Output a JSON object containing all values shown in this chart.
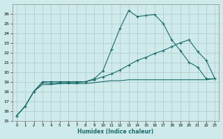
{
  "xlabel": "Humidex (Indice chaleur)",
  "bg_color": "#ceeaea",
  "grid_color": "#b0c8c8",
  "line_color": "#1a6b6b",
  "xlim": [
    -0.5,
    23.5
  ],
  "ylim": [
    15,
    27
  ],
  "xtick_labels": [
    "0",
    "1",
    "2",
    "3",
    "4",
    "5",
    "6",
    "7",
    "8",
    "9",
    "10",
    "11",
    "12",
    "13",
    "14",
    "15",
    "16",
    "17",
    "18",
    "19",
    "20",
    "21",
    "22",
    "23"
  ],
  "xtick_vals": [
    0,
    1,
    2,
    3,
    4,
    5,
    6,
    7,
    8,
    9,
    10,
    11,
    12,
    13,
    14,
    15,
    16,
    17,
    18,
    19,
    20,
    21,
    22,
    23
  ],
  "ytick_vals": [
    15,
    16,
    17,
    18,
    19,
    20,
    21,
    22,
    23,
    24,
    25,
    26
  ],
  "line1_x": [
    0,
    1,
    2,
    3,
    4,
    5,
    6,
    7,
    8,
    9,
    10,
    11,
    12,
    13,
    14,
    15,
    16,
    17,
    18,
    19,
    20,
    21,
    22,
    23
  ],
  "line1_y": [
    15.5,
    16.5,
    18.0,
    19.0,
    19.0,
    19.0,
    19.0,
    19.0,
    19.0,
    19.3,
    20.1,
    22.3,
    24.5,
    26.3,
    25.7,
    25.8,
    25.9,
    25.0,
    23.3,
    22.2,
    21.0,
    20.5,
    19.3,
    19.3
  ],
  "line2_x": [
    0,
    1,
    2,
    3,
    4,
    5,
    6,
    7,
    8,
    9,
    10,
    11,
    12,
    13,
    14,
    15,
    16,
    17,
    18,
    19,
    20,
    21,
    22,
    23
  ],
  "line2_y": [
    15.5,
    16.5,
    18.0,
    18.9,
    18.8,
    18.9,
    18.9,
    18.9,
    19.0,
    19.2,
    19.5,
    19.8,
    20.2,
    20.7,
    21.2,
    21.5,
    21.9,
    22.2,
    22.6,
    23.0,
    23.3,
    22.1,
    21.2,
    19.3
  ],
  "line3_x": [
    0,
    1,
    2,
    3,
    4,
    5,
    6,
    7,
    8,
    9,
    10,
    11,
    12,
    13,
    14,
    15,
    16,
    17,
    18,
    19,
    20,
    21,
    22,
    23
  ],
  "line3_y": [
    15.5,
    16.5,
    18.0,
    18.7,
    18.7,
    18.8,
    18.8,
    18.8,
    18.8,
    18.9,
    19.0,
    19.1,
    19.1,
    19.2,
    19.2,
    19.2,
    19.2,
    19.2,
    19.2,
    19.2,
    19.2,
    19.2,
    19.2,
    19.3
  ],
  "has_markers_line1": true,
  "has_markers_line2": true,
  "has_markers_line3": false
}
